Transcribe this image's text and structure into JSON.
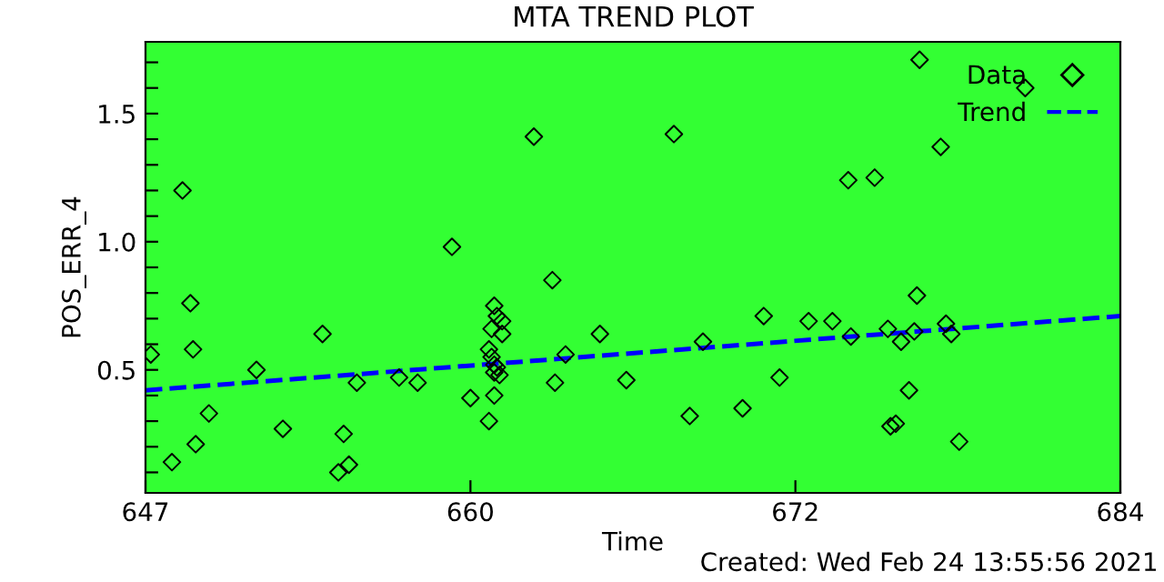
{
  "chart_data": {
    "type": "scatter",
    "title": "MTA TREND PLOT",
    "xlabel": "Time",
    "ylabel": "POS_ERR_4",
    "xlim": [
      647.4,
      684.3
    ],
    "xticks": [
      {
        "value": 647.4,
        "label": "647"
      },
      {
        "value": 659.7,
        "label": "660"
      },
      {
        "value": 672.0,
        "label": "672"
      },
      {
        "value": 684.3,
        "label": "684"
      }
    ],
    "ylim": [
      0.02,
      1.78
    ],
    "yticks": [
      {
        "value": 0.1,
        "label": null
      },
      {
        "value": 0.2,
        "label": null
      },
      {
        "value": 0.3,
        "label": null
      },
      {
        "value": 0.4,
        "label": null
      },
      0.5,
      {
        "value": 0.6,
        "label": null
      },
      {
        "value": 0.7,
        "label": null
      },
      {
        "value": 0.8,
        "label": null
      },
      {
        "value": 0.9,
        "label": null
      },
      {
        "value": 1.0,
        "label": "1.0"
      },
      {
        "value": 1.1,
        "label": null
      },
      {
        "value": 1.2,
        "label": null
      },
      {
        "value": 1.3,
        "label": null
      },
      {
        "value": 1.4,
        "label": null
      },
      1.5,
      {
        "value": 1.6,
        "label": null
      },
      {
        "value": 1.7,
        "label": null
      }
    ],
    "grid": false,
    "legend": "top right",
    "series": [
      {
        "name": "Data",
        "color": "#000000",
        "marker": "diamond",
        "x": [
          647.6,
          648.8,
          648.4,
          649.1,
          649.2,
          649.3,
          649.8,
          651.6,
          652.6,
          654.1,
          654.9,
          654.7,
          655.1,
          655.4,
          657.0,
          657.7,
          659.0,
          659.7,
          660.4,
          660.6,
          660.4,
          660.5,
          660.7,
          660.9,
          660.9,
          660.5,
          660.6,
          660.7,
          660.6,
          660.8,
          660.6,
          662.1,
          662.8,
          663.3,
          662.9,
          664.6,
          665.6,
          667.4,
          668.0,
          668.5,
          670.0,
          670.8,
          671.4,
          672.5,
          673.4,
          674.0,
          674.1,
          675.0,
          675.5,
          675.6,
          675.8,
          676.0,
          676.3,
          676.6,
          676.5,
          676.7,
          677.5,
          677.7,
          677.9,
          678.2,
          680.7
        ],
        "values": [
          0.56,
          1.2,
          0.14,
          0.76,
          0.58,
          0.21,
          0.33,
          0.5,
          0.27,
          0.64,
          0.25,
          0.1,
          0.13,
          0.45,
          0.47,
          0.45,
          0.98,
          0.39,
          0.3,
          0.75,
          0.58,
          0.66,
          0.71,
          0.69,
          0.64,
          0.55,
          0.52,
          0.51,
          0.49,
          0.48,
          0.4,
          1.41,
          0.85,
          0.56,
          0.45,
          0.64,
          0.46,
          1.42,
          0.32,
          0.61,
          0.35,
          0.71,
          0.47,
          0.69,
          0.69,
          1.24,
          0.63,
          1.25,
          0.66,
          0.28,
          0.29,
          0.61,
          0.42,
          0.79,
          0.65,
          1.71,
          1.37,
          0.68,
          0.64,
          0.22,
          1.6
        ]
      },
      {
        "name": "Trend",
        "type": "line",
        "color": "#0000ff",
        "line_style": "dashed",
        "x": [
          647.4,
          684.3
        ],
        "values": [
          0.42,
          0.71
        ]
      }
    ],
    "annotations": [
      "Created: Wed Feb 24 13:55:56 2021"
    ]
  }
}
